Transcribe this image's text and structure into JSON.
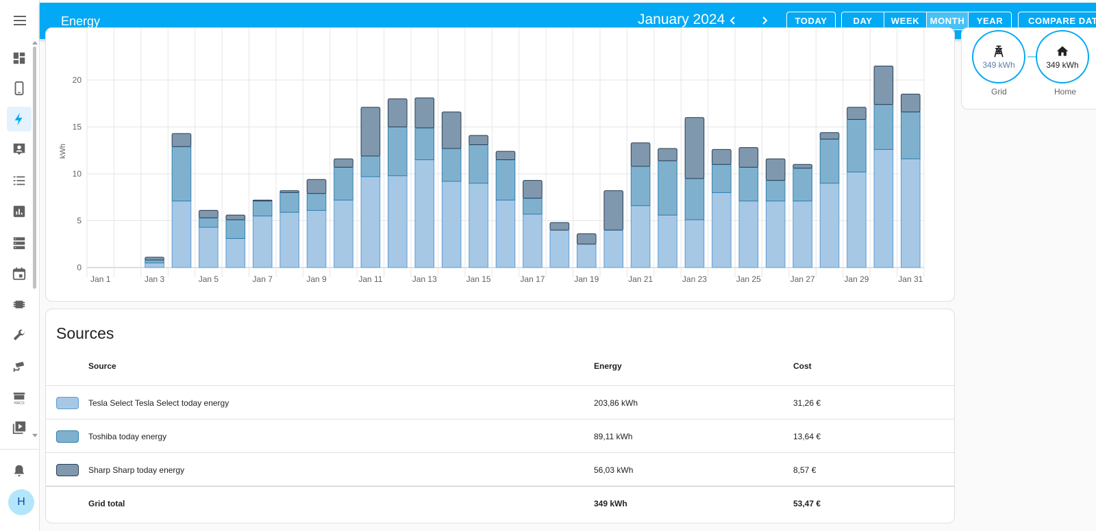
{
  "header": {
    "title": "Energy",
    "period": "January 2024",
    "today_label": "TODAY",
    "ranges": [
      {
        "label": "DAY",
        "active": false
      },
      {
        "label": "WEEK",
        "active": false
      },
      {
        "label": "MONTH",
        "active": true
      },
      {
        "label": "YEAR",
        "active": false
      }
    ],
    "compare_label": "COMPARE DATA"
  },
  "sidebar": {
    "items": [
      "view-dashboard-icon",
      "tablet-icon",
      "lightning-bolt-icon",
      "account-box-icon",
      "format-list-icon",
      "chart-box-icon",
      "server-icon",
      "calendar-icon",
      "chip-icon",
      "wrench-icon",
      "cctv-icon",
      "hacs-icon",
      "play-box-icon"
    ],
    "active_item": "lightning-bolt-icon",
    "avatar_letter": "H",
    "notifications_icon": "bell-icon"
  },
  "chart_data": {
    "type": "bar",
    "stacked": true,
    "ylabel": "kWh",
    "ylim": [
      0,
      23
    ],
    "yticks": [
      0,
      5,
      10,
      15,
      20
    ],
    "grid": true,
    "categories": [
      "Jan 1",
      "Jan 2",
      "Jan 3",
      "Jan 4",
      "Jan 5",
      "Jan 6",
      "Jan 7",
      "Jan 8",
      "Jan 9",
      "Jan 10",
      "Jan 11",
      "Jan 12",
      "Jan 13",
      "Jan 14",
      "Jan 15",
      "Jan 16",
      "Jan 17",
      "Jan 18",
      "Jan 19",
      "Jan 20",
      "Jan 21",
      "Jan 22",
      "Jan 23",
      "Jan 24",
      "Jan 25",
      "Jan 26",
      "Jan 27",
      "Jan 28",
      "Jan 29",
      "Jan 30",
      "Jan 31"
    ],
    "xtick_labels": [
      "Jan 1",
      "Jan 3",
      "Jan 5",
      "Jan 7",
      "Jan 9",
      "Jan 11",
      "Jan 13",
      "Jan 15",
      "Jan 17",
      "Jan 19",
      "Jan 21",
      "Jan 23",
      "Jan 25",
      "Jan 27",
      "Jan 29",
      "Jan 31"
    ],
    "series": [
      {
        "color": "#a6c8e5",
        "stroke": "#5b9bd5",
        "values": [
          0,
          0,
          0.5,
          7.1,
          4.3,
          3.1,
          5.5,
          5.9,
          6.1,
          7.2,
          9.7,
          9.8,
          11.5,
          9.2,
          9.0,
          7.2,
          5.7,
          4.0,
          2.5,
          4.0,
          6.6,
          5.6,
          5.1,
          8.0,
          7.1,
          7.1,
          7.1,
          9.0,
          10.2,
          12.6,
          11.6
        ]
      },
      {
        "color": "#7fb1cf",
        "stroke": "#2e7fae",
        "values": [
          0,
          0,
          0.3,
          5.8,
          1.0,
          2.0,
          1.6,
          2.1,
          1.8,
          3.5,
          2.2,
          5.2,
          3.4,
          3.5,
          4.1,
          4.3,
          1.7,
          0.0,
          0.0,
          0.0,
          4.2,
          5.8,
          4.4,
          3.0,
          3.6,
          2.2,
          3.5,
          4.7,
          5.6,
          4.8,
          5.0
        ]
      },
      {
        "color": "#8098ae",
        "stroke": "#263e56",
        "values": [
          0,
          0,
          0.3,
          1.4,
          0.8,
          0.5,
          0.1,
          0.2,
          1.5,
          0.9,
          5.2,
          3.0,
          3.2,
          3.9,
          1.0,
          0.9,
          1.9,
          0.8,
          1.1,
          4.2,
          2.5,
          1.3,
          6.5,
          1.6,
          2.1,
          2.3,
          0.4,
          0.7,
          1.3,
          4.1,
          1.9
        ]
      }
    ]
  },
  "flow": {
    "grid": {
      "value": "349 kWh",
      "label": "Grid",
      "icon": "transmission-tower-icon"
    },
    "home": {
      "value": "349 kWh",
      "label": "Home",
      "icon": "home-icon"
    }
  },
  "sources": {
    "title": "Sources",
    "columns": {
      "source": "Source",
      "energy": "Energy",
      "cost": "Cost"
    },
    "rows": [
      {
        "name": "Tesla Select Tesla Select today energy",
        "energy": "203,86 kWh",
        "cost": "31,26 €",
        "color": "#a6c8e5",
        "border": "#5b9bd5"
      },
      {
        "name": "Toshiba today energy",
        "energy": "89,11 kWh",
        "cost": "13,64 €",
        "color": "#7fb1cf",
        "border": "#2e7fae"
      },
      {
        "name": "Sharp Sharp today energy",
        "energy": "56,03 kWh",
        "cost": "8,57 €",
        "color": "#8098ae",
        "border": "#263e56"
      }
    ],
    "total": {
      "name": "Grid total",
      "energy": "349 kWh",
      "cost": "53,47 €"
    }
  }
}
